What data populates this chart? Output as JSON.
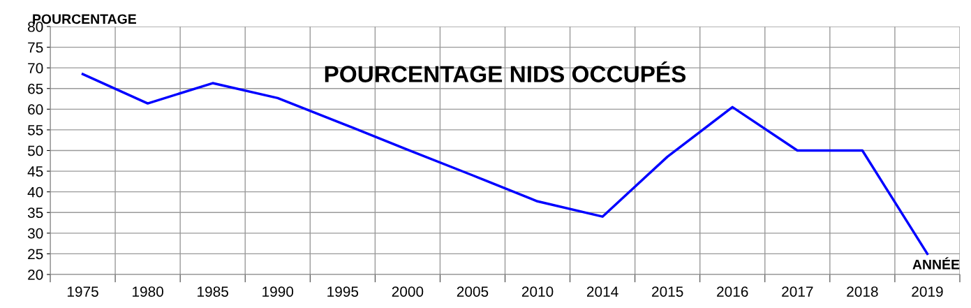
{
  "chart_data": {
    "type": "line",
    "title": "POURCENTAGE NIDS OCCUPÉS",
    "xlabel": "ANNÉE",
    "ylabel": "POURCENTAGE",
    "categories": [
      "1975",
      "1980",
      "1985",
      "1990",
      "1995",
      "2000",
      "2005",
      "2010",
      "2014",
      "2015",
      "2016",
      "2017",
      "2018",
      "2019"
    ],
    "series": [
      {
        "color": "#0000ff",
        "values": [
          68.5,
          61.4,
          66.3,
          62.7,
          56.5,
          50.2,
          44.0,
          37.7,
          34.0,
          48.5,
          60.5,
          50,
          50,
          25
        ]
      }
    ],
    "ylim": [
      20,
      80
    ],
    "yticks": [
      20,
      25,
      30,
      35,
      40,
      45,
      50,
      55,
      60,
      65,
      70,
      75,
      80
    ],
    "grid": true,
    "marker": "none",
    "line_style": "solid",
    "legend": false
  }
}
